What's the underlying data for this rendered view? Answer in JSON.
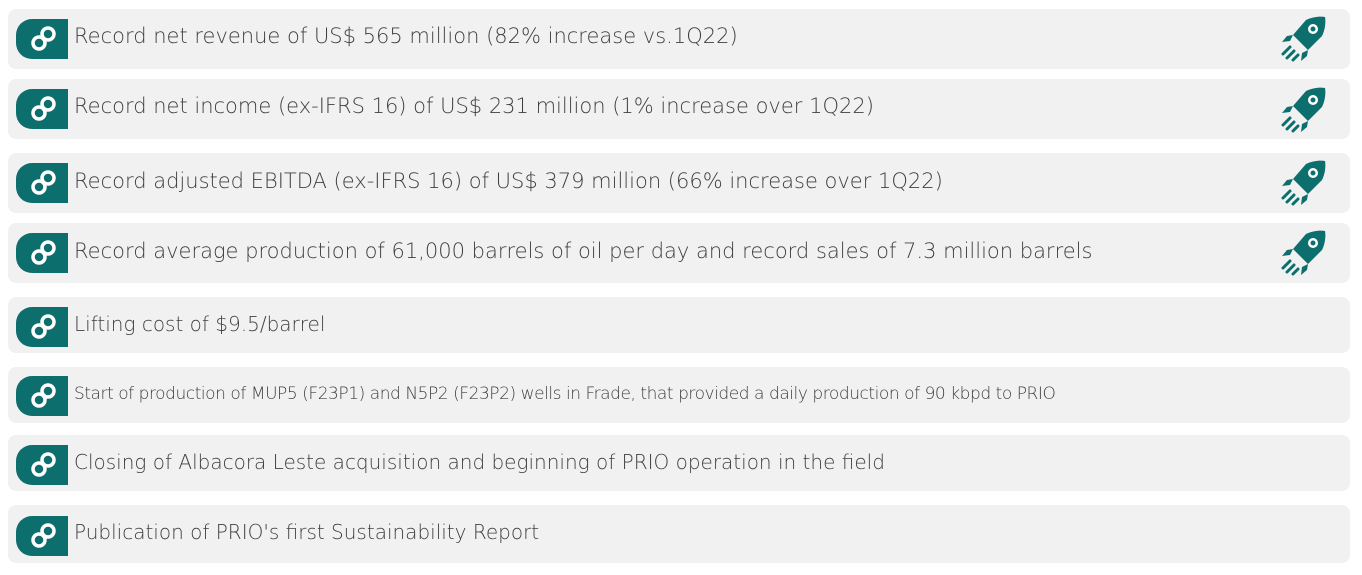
{
  "highlights": [
    {
      "text": "Record net revenue of US$ 565 million (82% increase vs.1Q22)",
      "icon": "rocket-icon"
    },
    {
      "text": "Record net income (ex-IFRS 16) of US$ 231 million (1% increase over 1Q22)",
      "icon": "rocket-icon"
    },
    {
      "text": "Record adjusted EBITDA (ex-IFRS 16) of US$ 379 million (66% increase over 1Q22)",
      "icon": "rocket-icon"
    },
    {
      "text": "Record average production of 61,000 barrels of oil per day and record sales of 7.3 million barrels",
      "icon": "rocket-icon"
    },
    {
      "text": "Lifting cost of $9.5/barrel",
      "icon": ""
    },
    {
      "text": "Start of production of MUP5 (F23P1) and N5P2 (F23P2) wells in Frade, that provided a daily production of 90 kbpd to PRIO",
      "icon": ""
    },
    {
      "text": "Closing of Albacora Leste acquisition and beginning of PRIO operation in the field",
      "icon": ""
    },
    {
      "text": "Publication of PRIO's first Sustainability Report",
      "icon": ""
    }
  ],
  "colors": {
    "accent": "#0d6e6e",
    "row_background": "#f1f1f1",
    "text": "#3f3f3f"
  }
}
